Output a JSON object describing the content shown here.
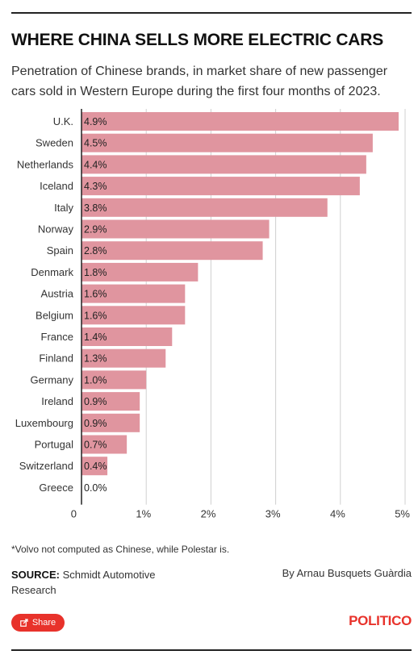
{
  "header": {
    "title": "WHERE CHINA SELLS MORE ELECTRIC CARS",
    "subtitle": "Penetration of Chinese brands, in market share of new passenger cars sold in Western Europe during the first four months of 2023."
  },
  "chart_data": {
    "type": "bar",
    "orientation": "horizontal",
    "categories": [
      "U.K.",
      "Sweden",
      "Netherlands",
      "Iceland",
      "Italy",
      "Norway",
      "Spain",
      "Denmark",
      "Austria",
      "Belgium",
      "France",
      "Finland",
      "Germany",
      "Ireland",
      "Luxembourg",
      "Portugal",
      "Switzerland",
      "Greece"
    ],
    "values": [
      4.9,
      4.5,
      4.4,
      4.3,
      3.8,
      2.9,
      2.8,
      1.8,
      1.6,
      1.6,
      1.4,
      1.3,
      1.0,
      0.9,
      0.9,
      0.7,
      0.4,
      0.0
    ],
    "value_labels": [
      "4.9%",
      "4.5%",
      "4.4%",
      "4.3%",
      "3.8%",
      "2.9%",
      "2.8%",
      "1.8%",
      "1.6%",
      "1.6%",
      "1.4%",
      "1.3%",
      "1.0%",
      "0.9%",
      "0.9%",
      "0.7%",
      "0.4%",
      "0.0%"
    ],
    "xlim": [
      0,
      5
    ],
    "x_ticks": [
      0,
      1,
      2,
      3,
      4,
      5
    ],
    "x_tick_labels": [
      "0",
      "1%",
      "2%",
      "3%",
      "4%",
      "5%"
    ],
    "xlabel": "",
    "ylabel": "",
    "grid": true,
    "bar_color": "#e0959f"
  },
  "footer": {
    "footnote": "*Volvo not computed as Chinese, while Polestar is.",
    "source_label": "SOURCE:",
    "source_text": " Schmidt Automotive Research",
    "byline": "By Arnau Busquets Guàrdia",
    "share_label": "Share",
    "share_icon": "share-icon",
    "logo": "POLITICO",
    "accent_color": "#e8322b"
  }
}
